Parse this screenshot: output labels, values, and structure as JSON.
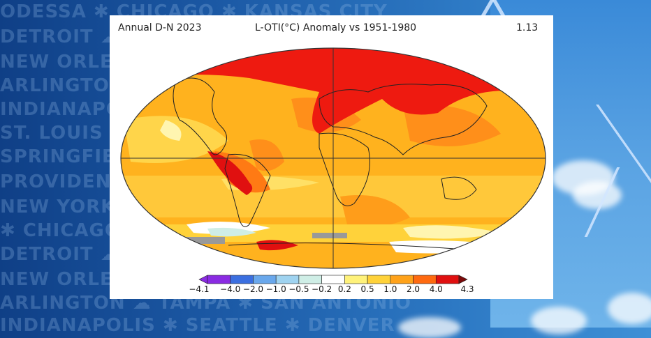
{
  "background": {
    "city_rows": [
      "ODESSA ✱ CHICAGO ✱ KANSAS CITY",
      "DETROIT ☁ BALTIMORE",
      "NEW ORLEANS",
      "ARLINGTON ☁ LAS",
      "INDIANAPOLIS",
      "ST. LOUIS ✱ AUSTIN",
      "SPRINGFIELD",
      "PROVIDENCE ✱ NEW ORLEANS",
      "NEW YORK CITY ✱ LOS ANGELES",
      "✱ CHICAGO ✱ KANSAS ✱ ARLINGTON",
      "DETROIT ☁ BALTIMORE ✱ SEATTLE",
      "NEW ORLEANS ✱ PHOENIX",
      "ARLINGTON ☁ TAMPA ✱ SAN ANTONIO",
      "INDIANAPOLIS ✱ SEATTLE ✱ DENVER"
    ]
  },
  "map": {
    "title_left": "Annual D-N 2023",
    "title_center": "L-OTI(°C) Anomaly vs 1951-1980",
    "title_right": "1.13",
    "colorbar": {
      "labels": [
        "−4.1",
        "−4.0",
        "−2.0",
        "−1.0",
        "−0.5",
        "−0.2",
        "0.2",
        "0.5",
        "1.0",
        "2.0",
        "4.0",
        "4.3"
      ],
      "colors": [
        "#8a2be2",
        "#3b6fe0",
        "#6aa8ec",
        "#9fd3f0",
        "#cfeee6",
        "#ffffff",
        "#fff27a",
        "#ffd23a",
        "#ffa21a",
        "#ff6a10",
        "#e01010"
      ],
      "left_arrow_color": "#8a2be2",
      "right_arrow_color": "#7a0a0a"
    }
  }
}
